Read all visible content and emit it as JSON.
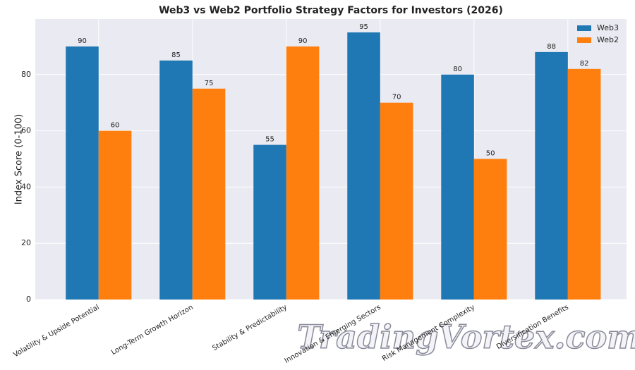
{
  "chart_data": {
    "type": "bar",
    "title": "Web3 vs Web2 Portfolio Strategy Factors for Investors (2026)",
    "y_label": "Index Score (0-100)",
    "categories": [
      "Volatility & Upside Potential",
      "Long-Term Growth Horizon",
      "Stability & Predictability",
      "Innovation & Emerging Sectors",
      "Risk Management Complexity",
      "Diversification Benefits"
    ],
    "series": [
      {
        "name": "Web3",
        "color": "#1f77b4",
        "values": [
          90,
          85,
          55,
          95,
          80,
          88
        ]
      },
      {
        "name": "Web2",
        "color": "#ff7f0e",
        "values": [
          60,
          75,
          90,
          70,
          50,
          82
        ]
      }
    ],
    "ylim": [
      0,
      100
    ],
    "yticks": [
      0,
      20,
      40,
      60,
      80
    ],
    "grid": true,
    "legend": "upper right"
  },
  "watermark": "TradingVortex.com"
}
